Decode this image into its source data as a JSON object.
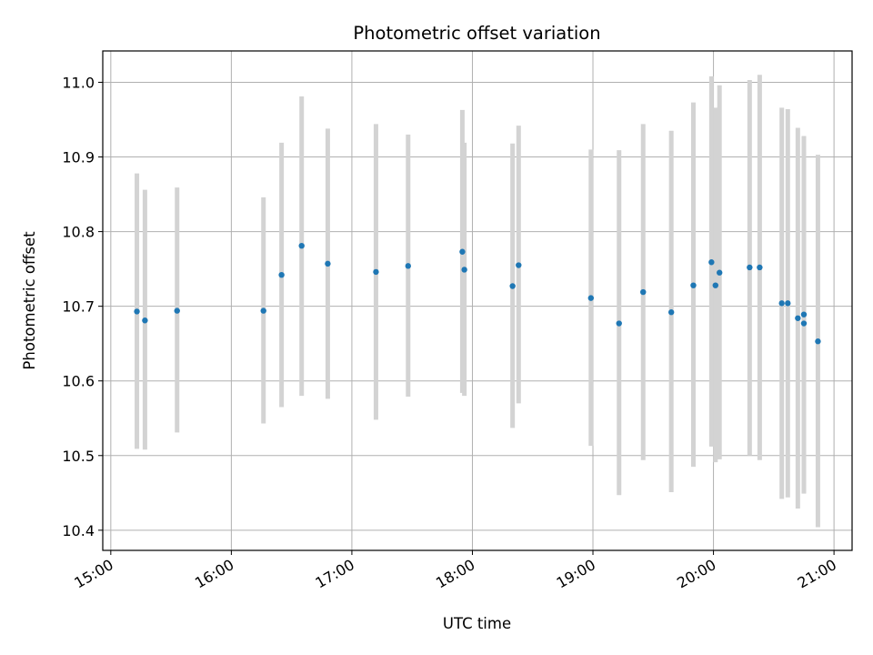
{
  "chart_data": {
    "type": "scatter",
    "title": "Photometric offset variation",
    "xlabel": "UTC time",
    "ylabel": "Photometric offset",
    "x_ticks": [
      "15:00",
      "16:00",
      "17:00",
      "18:00",
      "19:00",
      "20:00",
      "21:00"
    ],
    "y_ticks": [
      "10.4",
      "10.5",
      "10.6",
      "10.7",
      "10.8",
      "10.9",
      "11.0"
    ],
    "xlim": [
      "14:56",
      "21:09"
    ],
    "ylim": [
      10.373,
      11.042
    ],
    "grid": true,
    "colors": {
      "point": "#1f77b4",
      "errorbar": "#d3d3d3",
      "grid": "#b0b0b0"
    },
    "points": [
      {
        "time": "15:13",
        "y": 10.693,
        "low": 10.509,
        "high": 10.878
      },
      {
        "time": "15:17",
        "y": 10.681,
        "low": 10.508,
        "high": 10.856
      },
      {
        "time": "15:33",
        "y": 10.694,
        "low": 10.531,
        "high": 10.859
      },
      {
        "time": "16:16",
        "y": 10.694,
        "low": 10.543,
        "high": 10.846
      },
      {
        "time": "16:25",
        "y": 10.742,
        "low": 10.565,
        "high": 10.919
      },
      {
        "time": "16:35",
        "y": 10.781,
        "low": 10.58,
        "high": 10.981
      },
      {
        "time": "16:48",
        "y": 10.757,
        "low": 10.576,
        "high": 10.938
      },
      {
        "time": "17:12",
        "y": 10.746,
        "low": 10.548,
        "high": 10.944
      },
      {
        "time": "17:28",
        "y": 10.754,
        "low": 10.579,
        "high": 10.93
      },
      {
        "time": "17:55",
        "y": 10.773,
        "low": 10.584,
        "high": 10.963
      },
      {
        "time": "17:56",
        "y": 10.749,
        "low": 10.58,
        "high": 10.919
      },
      {
        "time": "18:20",
        "y": 10.727,
        "low": 10.537,
        "high": 10.918
      },
      {
        "time": "18:23",
        "y": 10.755,
        "low": 10.57,
        "high": 10.942
      },
      {
        "time": "18:59",
        "y": 10.711,
        "low": 10.513,
        "high": 10.91
      },
      {
        "time": "19:13",
        "y": 10.677,
        "low": 10.447,
        "high": 10.909
      },
      {
        "time": "19:25",
        "y": 10.719,
        "low": 10.494,
        "high": 10.944
      },
      {
        "time": "19:39",
        "y": 10.692,
        "low": 10.451,
        "high": 10.935
      },
      {
        "time": "19:50",
        "y": 10.728,
        "low": 10.485,
        "high": 10.973
      },
      {
        "time": "19:59",
        "y": 10.759,
        "low": 10.512,
        "high": 11.008
      },
      {
        "time": "20:01",
        "y": 10.728,
        "low": 10.491,
        "high": 10.966
      },
      {
        "time": "20:03",
        "y": 10.745,
        "low": 10.495,
        "high": 10.996
      },
      {
        "time": "20:18",
        "y": 10.752,
        "low": 10.5,
        "high": 11.003
      },
      {
        "time": "20:23",
        "y": 10.752,
        "low": 10.494,
        "high": 11.01
      },
      {
        "time": "20:34",
        "y": 10.704,
        "low": 10.442,
        "high": 10.966
      },
      {
        "time": "20:37",
        "y": 10.704,
        "low": 10.444,
        "high": 10.964
      },
      {
        "time": "20:42",
        "y": 10.684,
        "low": 10.429,
        "high": 10.939
      },
      {
        "time": "20:45",
        "y": 10.689,
        "low": 10.45,
        "high": 10.928
      },
      {
        "time": "20:45",
        "y": 10.677,
        "low": 10.449,
        "high": 10.906
      },
      {
        "time": "20:52",
        "y": 10.653,
        "low": 10.404,
        "high": 10.903
      }
    ]
  }
}
